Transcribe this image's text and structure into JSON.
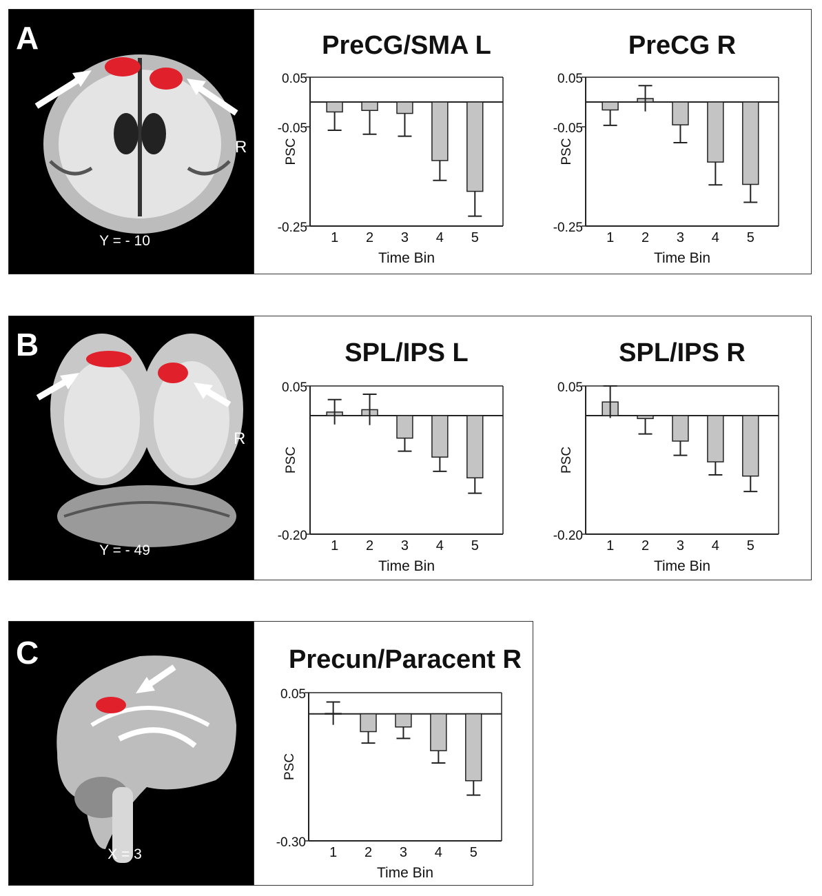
{
  "panels": [
    {
      "letter": "A",
      "coord_label": "Y = - 10",
      "side_label": "R"
    },
    {
      "letter": "B",
      "coord_label": "Y = - 49",
      "side_label": "R"
    },
    {
      "letter": "C",
      "coord_label": "X = 3",
      "side_label": ""
    }
  ],
  "chart_data": [
    {
      "type": "bar",
      "title": "PreCG/SMA L",
      "xlabel": "Time Bin",
      "ylabel": "PSC",
      "categories": [
        "1",
        "2",
        "3",
        "4",
        "5"
      ],
      "values": [
        -0.02,
        -0.017,
        -0.023,
        -0.118,
        -0.18
      ],
      "errors": [
        0.037,
        0.048,
        0.046,
        0.04,
        0.05
      ],
      "ylim": [
        -0.25,
        0.05
      ],
      "yticks": [
        0.05,
        -0.05,
        -0.25
      ],
      "ytick_labels": [
        "0.05",
        "-0.05",
        "-0.25"
      ],
      "legend": false
    },
    {
      "type": "bar",
      "title": "PreCG R",
      "xlabel": "Time Bin",
      "ylabel": "PSC",
      "categories": [
        "1",
        "2",
        "3",
        "4",
        "5"
      ],
      "values": [
        -0.016,
        0.007,
        -0.046,
        -0.121,
        -0.166
      ],
      "errors": [
        0.031,
        0.026,
        0.036,
        0.046,
        0.036
      ],
      "ylim": [
        -0.25,
        0.05
      ],
      "yticks": [
        0.05,
        -0.05,
        -0.25
      ],
      "ytick_labels": [
        "0.05",
        "-0.05",
        "-0.25"
      ],
      "legend": false
    },
    {
      "type": "bar",
      "title": "SPL/IPS L",
      "xlabel": "Time Bin",
      "ylabel": "PSC",
      "categories": [
        "1",
        "2",
        "3",
        "4",
        "5"
      ],
      "values": [
        0.006,
        0.01,
        -0.038,
        -0.07,
        -0.105
      ],
      "errors": [
        0.021,
        0.026,
        0.022,
        0.024,
        0.026
      ],
      "ylim": [
        -0.2,
        0.05
      ],
      "yticks": [
        0.05,
        -0.2
      ],
      "ytick_labels": [
        "0.05",
        "-0.20"
      ],
      "legend": false
    },
    {
      "type": "bar",
      "title": "SPL/IPS R",
      "xlabel": "Time Bin",
      "ylabel": "PSC",
      "categories": [
        "1",
        "2",
        "3",
        "4",
        "5"
      ],
      "values": [
        0.023,
        -0.005,
        -0.043,
        -0.078,
        -0.102
      ],
      "errors": [
        0.027,
        0.026,
        0.024,
        0.022,
        0.026
      ],
      "ylim": [
        -0.2,
        0.05
      ],
      "yticks": [
        0.05,
        -0.2
      ],
      "ytick_labels": [
        "0.05",
        "-0.20"
      ],
      "legend": false
    },
    {
      "type": "bar",
      "title": "Precun/Paracent R",
      "xlabel": "Time Bin",
      "ylabel": "PSC",
      "categories": [
        "1",
        "2",
        "3",
        "4",
        "5"
      ],
      "values": [
        0.001,
        -0.042,
        -0.031,
        -0.087,
        -0.158
      ],
      "errors": [
        0.027,
        0.027,
        0.027,
        0.029,
        0.034
      ],
      "ylim": [
        -0.3,
        0.05
      ],
      "yticks": [
        0.05,
        -0.3
      ],
      "ytick_labels": [
        "0.05",
        "-0.30"
      ],
      "legend": false
    }
  ],
  "colors": {
    "bar_fill": "#c4c4c4",
    "bar_stroke": "#222222",
    "axis": "#222222",
    "activation": "#e0202a"
  }
}
